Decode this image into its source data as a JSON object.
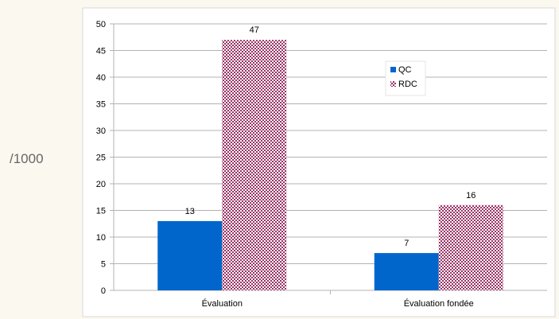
{
  "side_label": "/1000",
  "chart_data": {
    "type": "bar",
    "categories": [
      "Évaluation",
      "Évaluation fondée"
    ],
    "series": [
      {
        "name": "QC",
        "values": [
          13,
          7
        ],
        "color": "#0066cc"
      },
      {
        "name": "RDC",
        "values": [
          47,
          16
        ],
        "color": "#993366",
        "pattern": "checker"
      }
    ],
    "ylim": [
      0,
      50
    ],
    "yticks": [
      0,
      5,
      10,
      15,
      20,
      25,
      30,
      35,
      40,
      45,
      50
    ],
    "grid": true,
    "legend": "upper-right-inside",
    "data_labels": true,
    "colors": {
      "page_bg": "#fbf8f0",
      "plot_bg": "#ffffff",
      "grid": "#b3b3b3"
    }
  }
}
